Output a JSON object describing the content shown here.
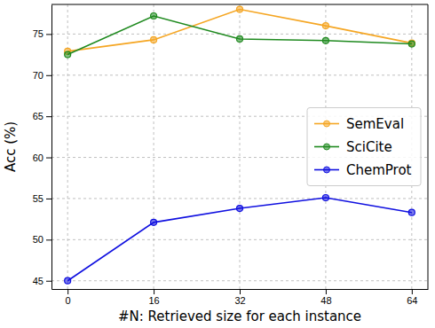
{
  "chart_data": {
    "type": "line",
    "x_label": "#N: Retrieved size for each instance",
    "y_label": "Acc (%)",
    "x": [
      0,
      16,
      32,
      48,
      64
    ],
    "series": [
      {
        "name": "SemEval",
        "color": "#f5a623",
        "marker": "circle",
        "values": [
          72.9,
          74.3,
          78.0,
          76.0,
          73.9
        ]
      },
      {
        "name": "SciCite",
        "color": "#1f8a1f",
        "marker": "circle",
        "values": [
          72.5,
          77.2,
          74.4,
          74.2,
          73.8
        ]
      },
      {
        "name": "ChemProt",
        "color": "#1010e0",
        "marker": "circle",
        "values": [
          45.0,
          52.1,
          53.8,
          55.1,
          53.3
        ]
      }
    ],
    "xlim": [
      -3,
      67
    ],
    "xticks": [
      0,
      16,
      32,
      48,
      64
    ],
    "ylim": [
      44,
      78.6
    ],
    "yticks": [
      45,
      50,
      55,
      60,
      65,
      70,
      75
    ],
    "grid": true,
    "legend": "center right"
  }
}
